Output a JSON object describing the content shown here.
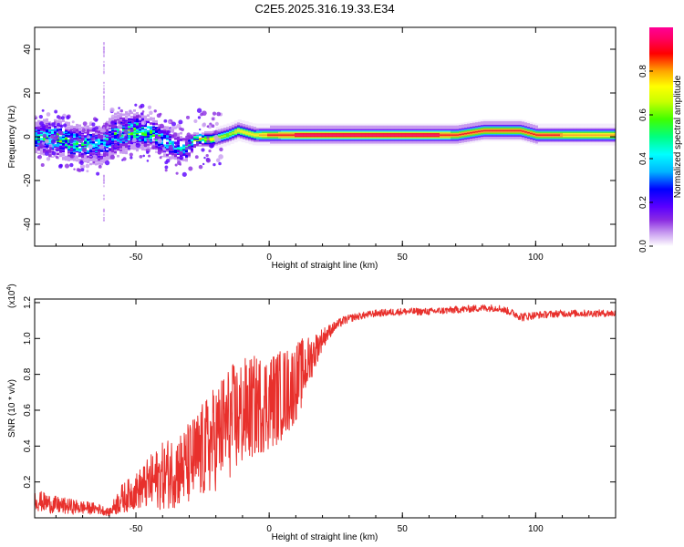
{
  "chart_data": [
    {
      "type": "heatmap",
      "title": "C2E5.2025.316.19.33.E34",
      "xlabel": "Height of straight line (km)",
      "ylabel": "Frequency (Hz)",
      "xlim": [
        -88,
        130
      ],
      "ylim": [
        -50,
        50
      ],
      "xticks": [
        "-50",
        "0",
        "50",
        "100"
      ],
      "yticks": [
        "-40",
        "-20",
        "0",
        "20",
        "40"
      ],
      "colorbar": {
        "label": "Normalized spectral amplitude",
        "range": [
          0,
          1
        ],
        "ticks": [
          "0.0",
          "0.2",
          "0.4",
          "0.6",
          "0.8"
        ],
        "colors": [
          "#ffffff",
          "#c89cf0",
          "#8a2be2",
          "#5a00ff",
          "#0000ff",
          "#00b4ff",
          "#00ffff",
          "#00ff80",
          "#40ff00",
          "#c8ff00",
          "#ffff00",
          "#ffa500",
          "#ff0000",
          "#ff0064",
          "#ff0096"
        ]
      },
      "band": [
        {
          "x": -88,
          "f": 0,
          "w": 7,
          "a": 0.45
        },
        {
          "x": -80,
          "f": -1,
          "w": 8,
          "a": 0.5
        },
        {
          "x": -72,
          "f": -3,
          "w": 8,
          "a": 0.45
        },
        {
          "x": -64,
          "f": -4,
          "w": 9,
          "a": 0.35
        },
        {
          "x": -58,
          "f": 1,
          "w": 9,
          "a": 0.45
        },
        {
          "x": -50,
          "f": 3,
          "w": 8,
          "a": 0.5
        },
        {
          "x": -44,
          "f": 1,
          "w": 7,
          "a": 0.45
        },
        {
          "x": -38,
          "f": -3,
          "w": 7,
          "a": 0.4
        },
        {
          "x": -32,
          "f": -6,
          "w": 6,
          "a": 0.4
        },
        {
          "x": -28,
          "f": -1,
          "w": 3,
          "a": 0.6
        },
        {
          "x": -22,
          "f": -1,
          "w": 3,
          "a": 0.7
        },
        {
          "x": -16,
          "f": 1,
          "w": 3,
          "a": 0.6
        },
        {
          "x": -12,
          "f": 3,
          "w": 3,
          "a": 0.7
        },
        {
          "x": -6,
          "f": 1,
          "w": 3,
          "a": 0.7
        },
        {
          "x": 0,
          "f": 1,
          "w": 3,
          "a": 0.85
        },
        {
          "x": 10,
          "f": 1,
          "w": 3,
          "a": 0.9
        },
        {
          "x": 30,
          "f": 1,
          "w": 3,
          "a": 0.95
        },
        {
          "x": 55,
          "f": 1,
          "w": 3,
          "a": 0.95
        },
        {
          "x": 70,
          "f": 1,
          "w": 3,
          "a": 0.85
        },
        {
          "x": 80,
          "f": 3,
          "w": 3,
          "a": 0.85
        },
        {
          "x": 94,
          "f": 3,
          "w": 3,
          "a": 0.85
        },
        {
          "x": 100,
          "f": 1,
          "w": 3,
          "a": 0.85
        },
        {
          "x": 115,
          "f": 1,
          "w": 3,
          "a": 0.8
        },
        {
          "x": 130,
          "f": 1,
          "w": 3,
          "a": 0.8
        }
      ]
    },
    {
      "type": "line",
      "xlabel": "Height of straight line (km)",
      "ylabel": "SNR (10 * v/v)",
      "y_exponent": "(x10",
      "y_exponent_power": "4",
      "y_exponent_close": ")",
      "xlim": [
        -88,
        130
      ],
      "ylim": [
        0,
        1.22
      ],
      "xticks": [
        "-50",
        "0",
        "50",
        "100"
      ],
      "yticks": [
        "0.2",
        "0.4",
        "0.6",
        "0.8",
        "1.0",
        "1.2"
      ],
      "color": "#e8302c",
      "series": [
        {
          "name": "SNR",
          "x": [
            -88,
            -80,
            -72,
            -64,
            -60,
            -56,
            -50,
            -44,
            -38,
            -32,
            -28,
            -24,
            -20,
            -16,
            -12,
            -8,
            -4,
            0,
            4,
            8,
            12,
            16,
            20,
            24,
            28,
            32,
            40,
            50,
            60,
            70,
            80,
            86,
            90,
            95,
            100,
            110,
            120,
            130
          ],
          "y": [
            0.1,
            0.07,
            0.06,
            0.05,
            0.03,
            0.1,
            0.15,
            0.2,
            0.25,
            0.28,
            0.32,
            0.38,
            0.45,
            0.52,
            0.56,
            0.6,
            0.63,
            0.65,
            0.68,
            0.72,
            0.8,
            0.9,
            1.0,
            1.06,
            1.1,
            1.12,
            1.14,
            1.15,
            1.15,
            1.16,
            1.17,
            1.17,
            1.15,
            1.12,
            1.13,
            1.14,
            1.14,
            1.14
          ],
          "noise": [
            0.06,
            0.05,
            0.04,
            0.03,
            0.02,
            0.08,
            0.1,
            0.16,
            0.2,
            0.22,
            0.26,
            0.28,
            0.3,
            0.32,
            0.32,
            0.3,
            0.28,
            0.28,
            0.26,
            0.24,
            0.2,
            0.12,
            0.06,
            0.03,
            0.025,
            0.02,
            0.02,
            0.02,
            0.02,
            0.02,
            0.02,
            0.02,
            0.02,
            0.025,
            0.02,
            0.02,
            0.02,
            0.02
          ]
        }
      ]
    }
  ]
}
